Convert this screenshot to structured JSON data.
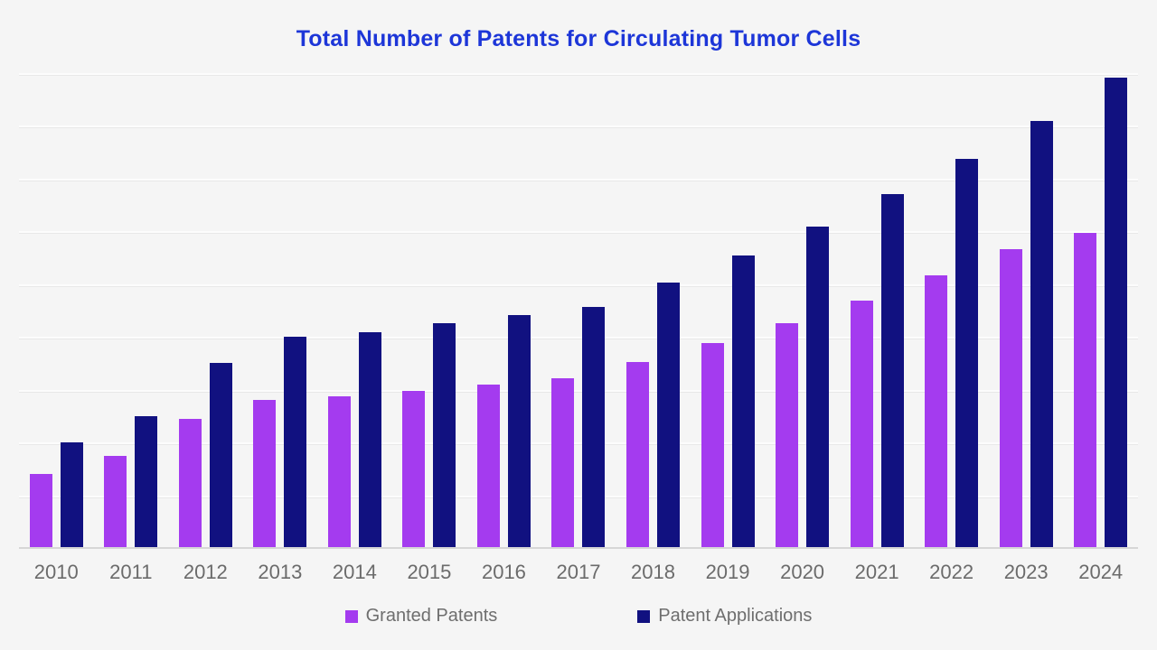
{
  "title": "Total Number of Patents for Circulating Tumor Cells",
  "styles": {
    "background": "#f5f5f5",
    "title_color": "#1d36d8",
    "axis_label_color": "#6b6b6b",
    "legend_text_color": "#6e6e6e",
    "gridline_color": "#fcfcfc",
    "baseline_color": "#d6d6d6"
  },
  "chart_data": {
    "type": "bar",
    "title": "Total Number of Patents for Circulating Tumor Cells",
    "categories": [
      "2010",
      "2011",
      "2012",
      "2013",
      "2014",
      "2015",
      "2016",
      "2017",
      "2018",
      "2019",
      "2020",
      "2021",
      "2022",
      "2023",
      "2024"
    ],
    "series": [
      {
        "name": "Granted Patents",
        "color": "#a43bef",
        "values": [
          140,
          175,
          245,
          280,
          288,
          297,
          309,
          321,
          352,
          388,
          426,
          469,
          516,
          567,
          597
        ]
      },
      {
        "name": "Patent Applications",
        "color": "#111180",
        "values": [
          200,
          250,
          350,
          400,
          409,
          426,
          442,
          457,
          503,
          554,
          610,
          670,
          738,
          809,
          892
        ]
      }
    ],
    "xlabel": "",
    "ylabel": "",
    "ylim": [
      0,
      900
    ],
    "gridline_interval": 100,
    "grid": "horizontal",
    "y_tick_labels_visible": false,
    "legend_position": "bottom",
    "values_note": "values estimated from bar heights; y axis is unlabeled in source"
  },
  "legend": {
    "items": [
      {
        "label": "Granted Patents",
        "color": "#a43bef"
      },
      {
        "label": "Patent Applications",
        "color": "#111180"
      }
    ]
  }
}
